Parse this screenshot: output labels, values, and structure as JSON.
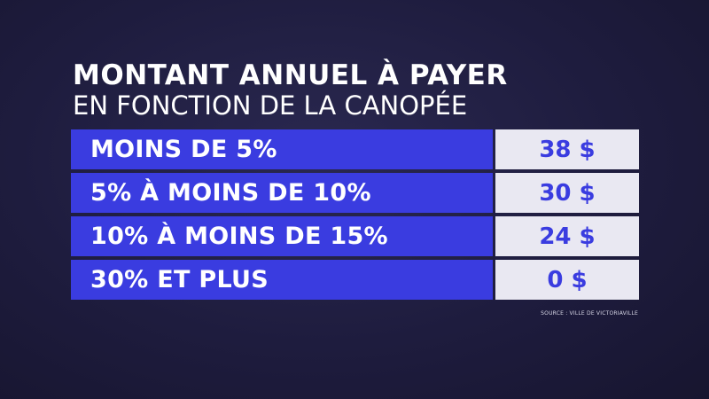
{
  "title": {
    "line1": "MONTANT ANNUEL À PAYER",
    "line2": "EN FONCTION DE LA CANOPÉE"
  },
  "rows": [
    {
      "label": "MOINS DE 5%",
      "value": "38 $"
    },
    {
      "label": "5% À MOINS DE 10%",
      "value": "30 $"
    },
    {
      "label": "10% À MOINS DE 15%",
      "value": "24 $"
    },
    {
      "label": "30% ET PLUS",
      "value": "0 $"
    }
  ],
  "source": "SOURCE : VILLE DE VICTORIAVILLE",
  "colors": {
    "background": "#1e1c3e",
    "accent_blue": "#3a3ce0",
    "value_cell": "#e9e8f2",
    "text_white": "#ffffff"
  }
}
